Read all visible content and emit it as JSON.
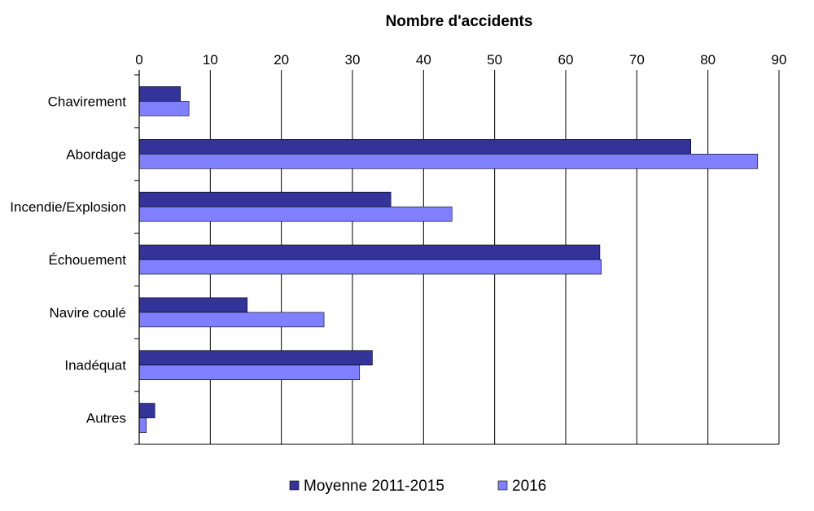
{
  "chart_data": {
    "type": "bar",
    "orientation": "horizontal",
    "title": "",
    "xlabel": "Nombre d'accidents",
    "ylabel": "",
    "xlim": [
      0,
      90
    ],
    "ticks": [
      0,
      10,
      20,
      30,
      40,
      50,
      60,
      70,
      80,
      90
    ],
    "grid": "vertical",
    "legend_position": "bottom",
    "categories": [
      "Chavirement",
      "Abordage",
      "Incendie/Explosion",
      "Échouement",
      "Navire coulé",
      "Inadéquat",
      "Autres"
    ],
    "series": [
      {
        "name": "Moyenne 2011-2015",
        "color": "#333399",
        "values": [
          5.8,
          77.6,
          35.4,
          64.8,
          15.2,
          32.8,
          2.2
        ]
      },
      {
        "name": "2016",
        "color": "#8080ff",
        "values": [
          7,
          87,
          44,
          65,
          26,
          31,
          1
        ]
      }
    ]
  }
}
